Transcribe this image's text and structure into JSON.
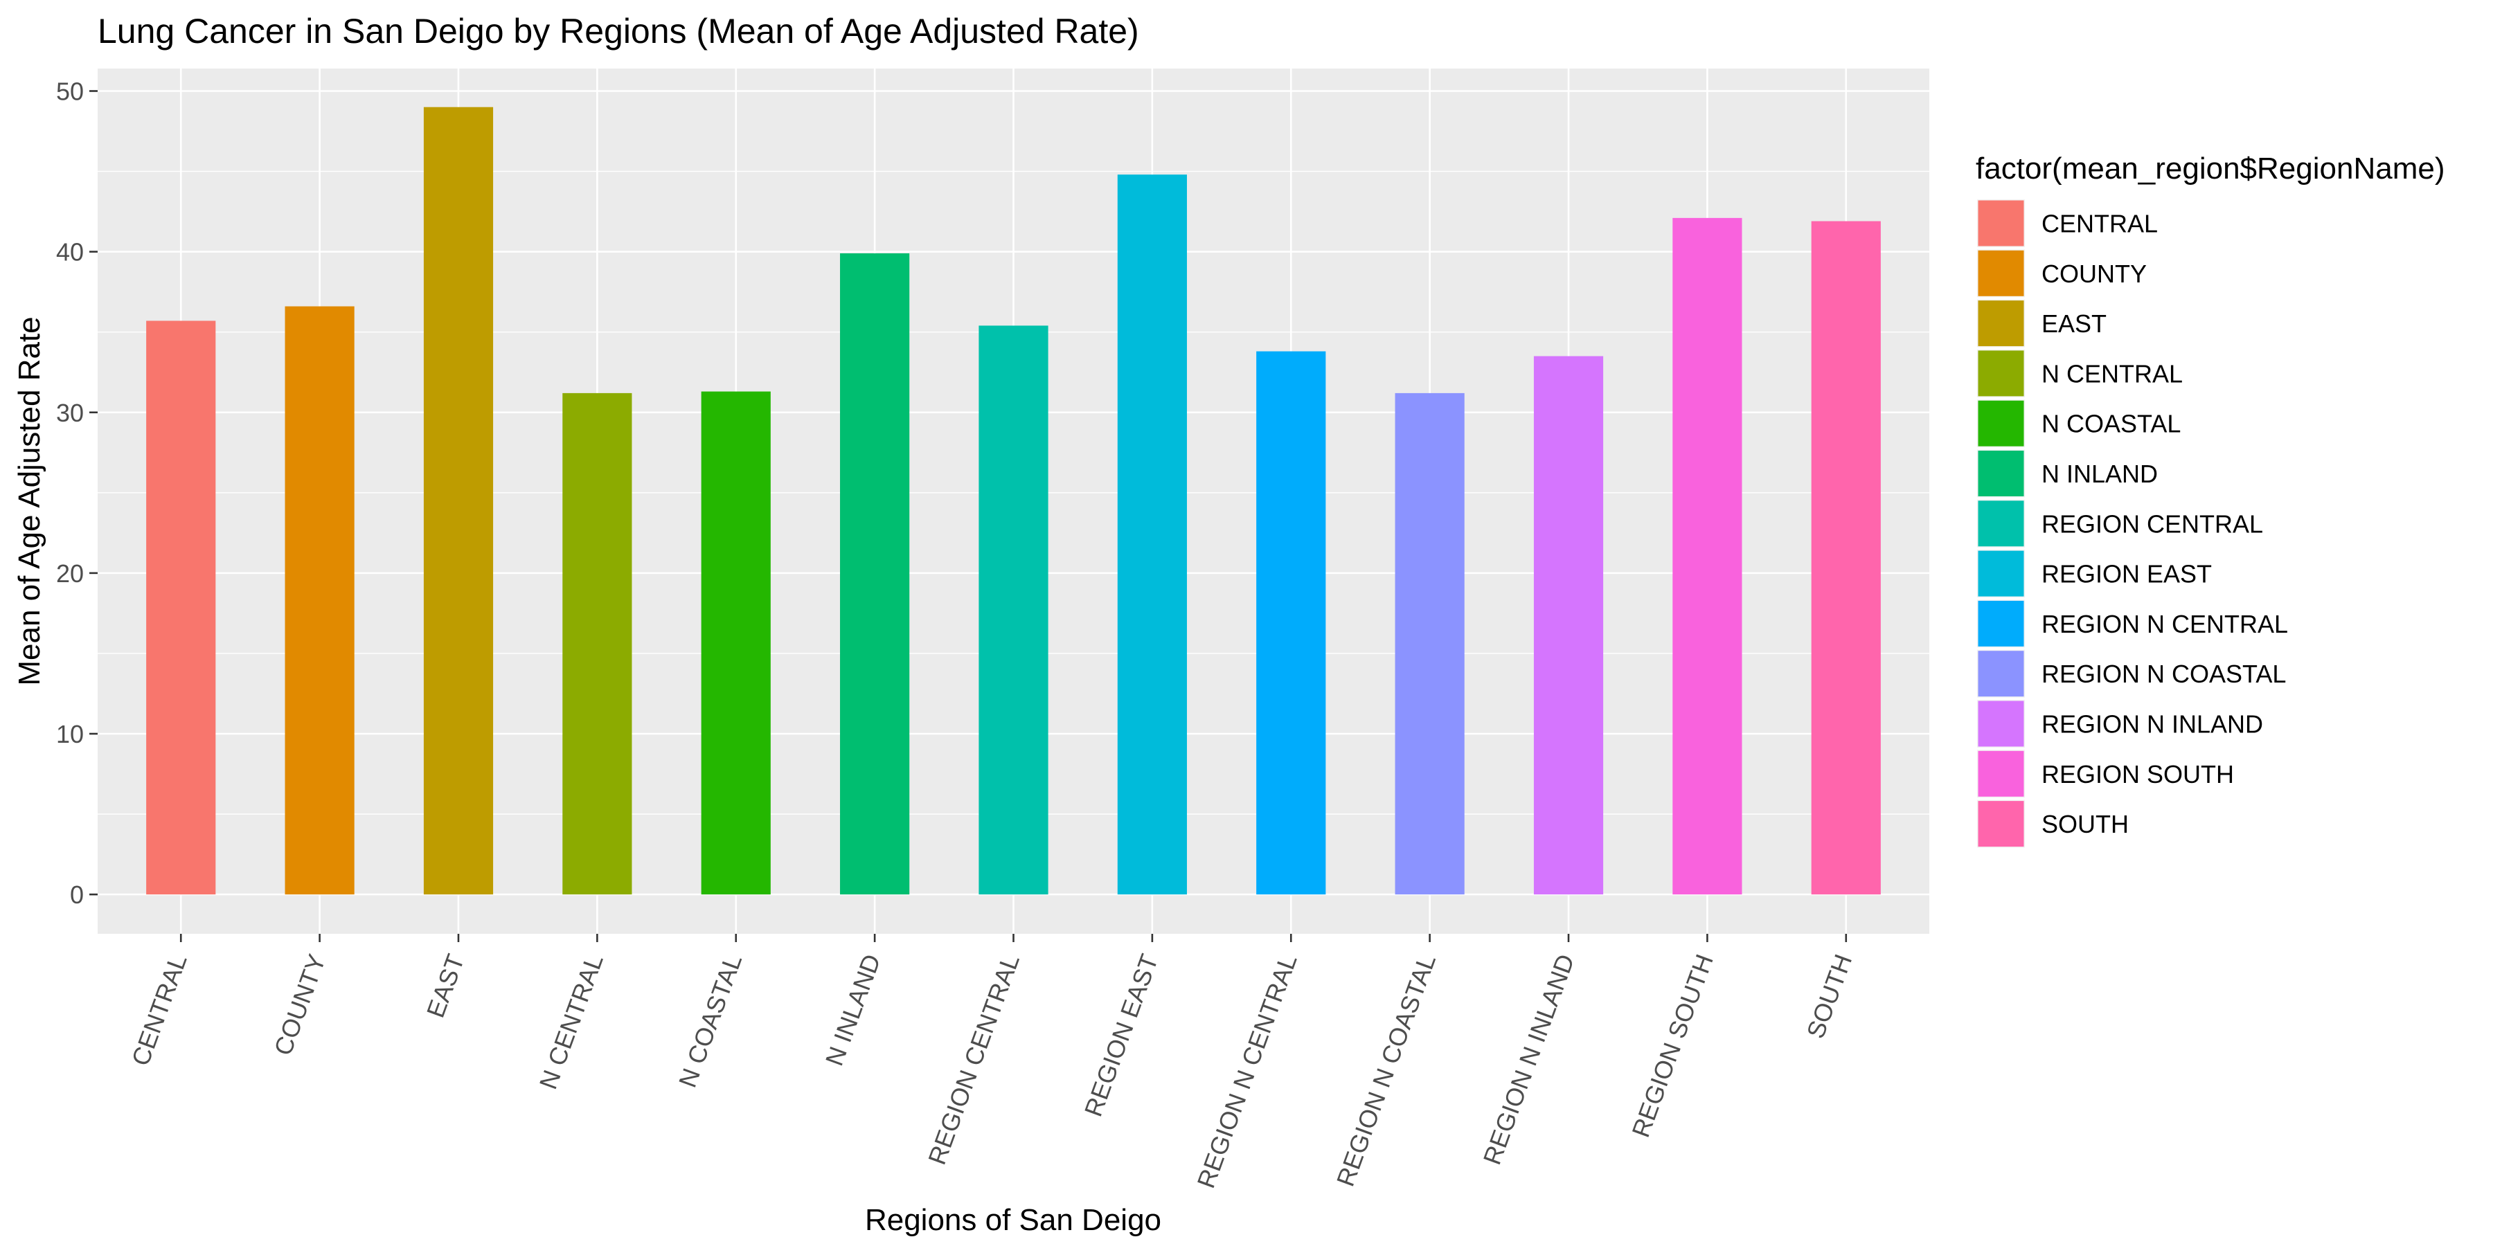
{
  "chart_data": {
    "type": "bar",
    "title": "Lung Cancer in San Deigo by Regions (Mean of Age Adjusted Rate)",
    "xlabel": "Regions of San Deigo",
    "ylabel": "Mean of Age Adjusted Rate",
    "ylim": [
      -2.45,
      51.4
    ],
    "yticks": [
      0,
      10,
      20,
      30,
      40,
      50
    ],
    "grid": true,
    "legend_position": "right",
    "legend_title": "factor(mean_region$RegionName)",
    "categories": [
      "CENTRAL",
      "COUNTY",
      "EAST",
      "N CENTRAL",
      "N COASTAL",
      "N INLAND",
      "REGION CENTRAL",
      "REGION EAST",
      "REGION N CENTRAL",
      "REGION N COASTAL",
      "REGION N INLAND",
      "REGION SOUTH",
      "SOUTH"
    ],
    "values": [
      35.7,
      36.6,
      49.0,
      31.2,
      31.3,
      39.9,
      35.4,
      44.8,
      33.8,
      31.2,
      33.5,
      42.1,
      41.9
    ],
    "colors": [
      "#F8766D",
      "#E18A00",
      "#BE9C00",
      "#8CAB00",
      "#24B700",
      "#00BE70",
      "#00C1AB",
      "#00BBDA",
      "#00ACFC",
      "#8B93FF",
      "#D575FE",
      "#F962DD",
      "#FF65AC"
    ]
  }
}
